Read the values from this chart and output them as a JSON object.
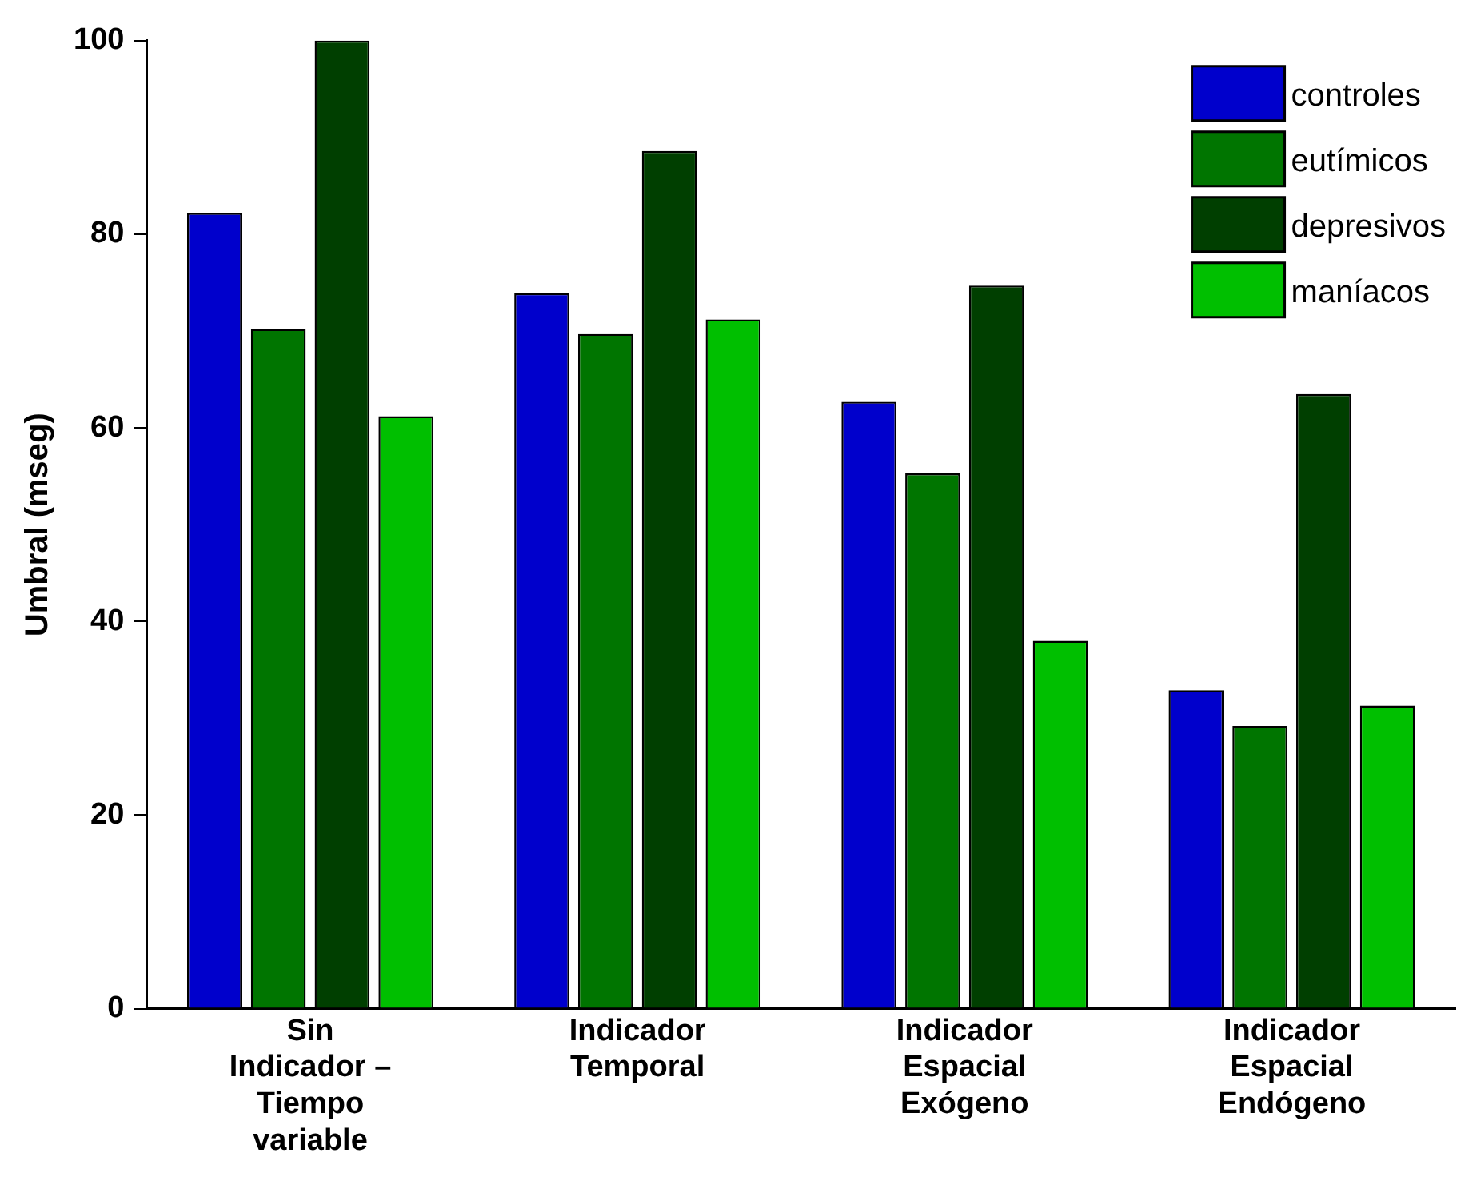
{
  "chart_data": {
    "type": "bar",
    "ylabel": "Umbral (mseg)",
    "categories": [
      "Sin\nIndicador –\nTiempo\nvariable",
      "Indicador\nTemporal",
      "Indicador\nEspacial\nExógeno",
      "Indicador\nEspacial\nEndógeno"
    ],
    "series": [
      {
        "name": "controles",
        "color": "#0000cc",
        "values": [
          82.2,
          73.9,
          62.7,
          32.9
        ]
      },
      {
        "name": "eutímicos",
        "color": "#007500",
        "values": [
          70.2,
          69.7,
          55.3,
          29.2
        ]
      },
      {
        "name": "depresivos",
        "color": "#003f00",
        "values": [
          100,
          88.6,
          74.7,
          63.5
        ]
      },
      {
        "name": "maníacos",
        "color": "#00bf00",
        "values": [
          61.2,
          71.2,
          38.0,
          31.3
        ]
      }
    ],
    "ylim": [
      0,
      100
    ],
    "yticks": [
      0,
      20,
      40,
      60,
      80,
      100
    ],
    "grid": false,
    "legend": "top right"
  }
}
